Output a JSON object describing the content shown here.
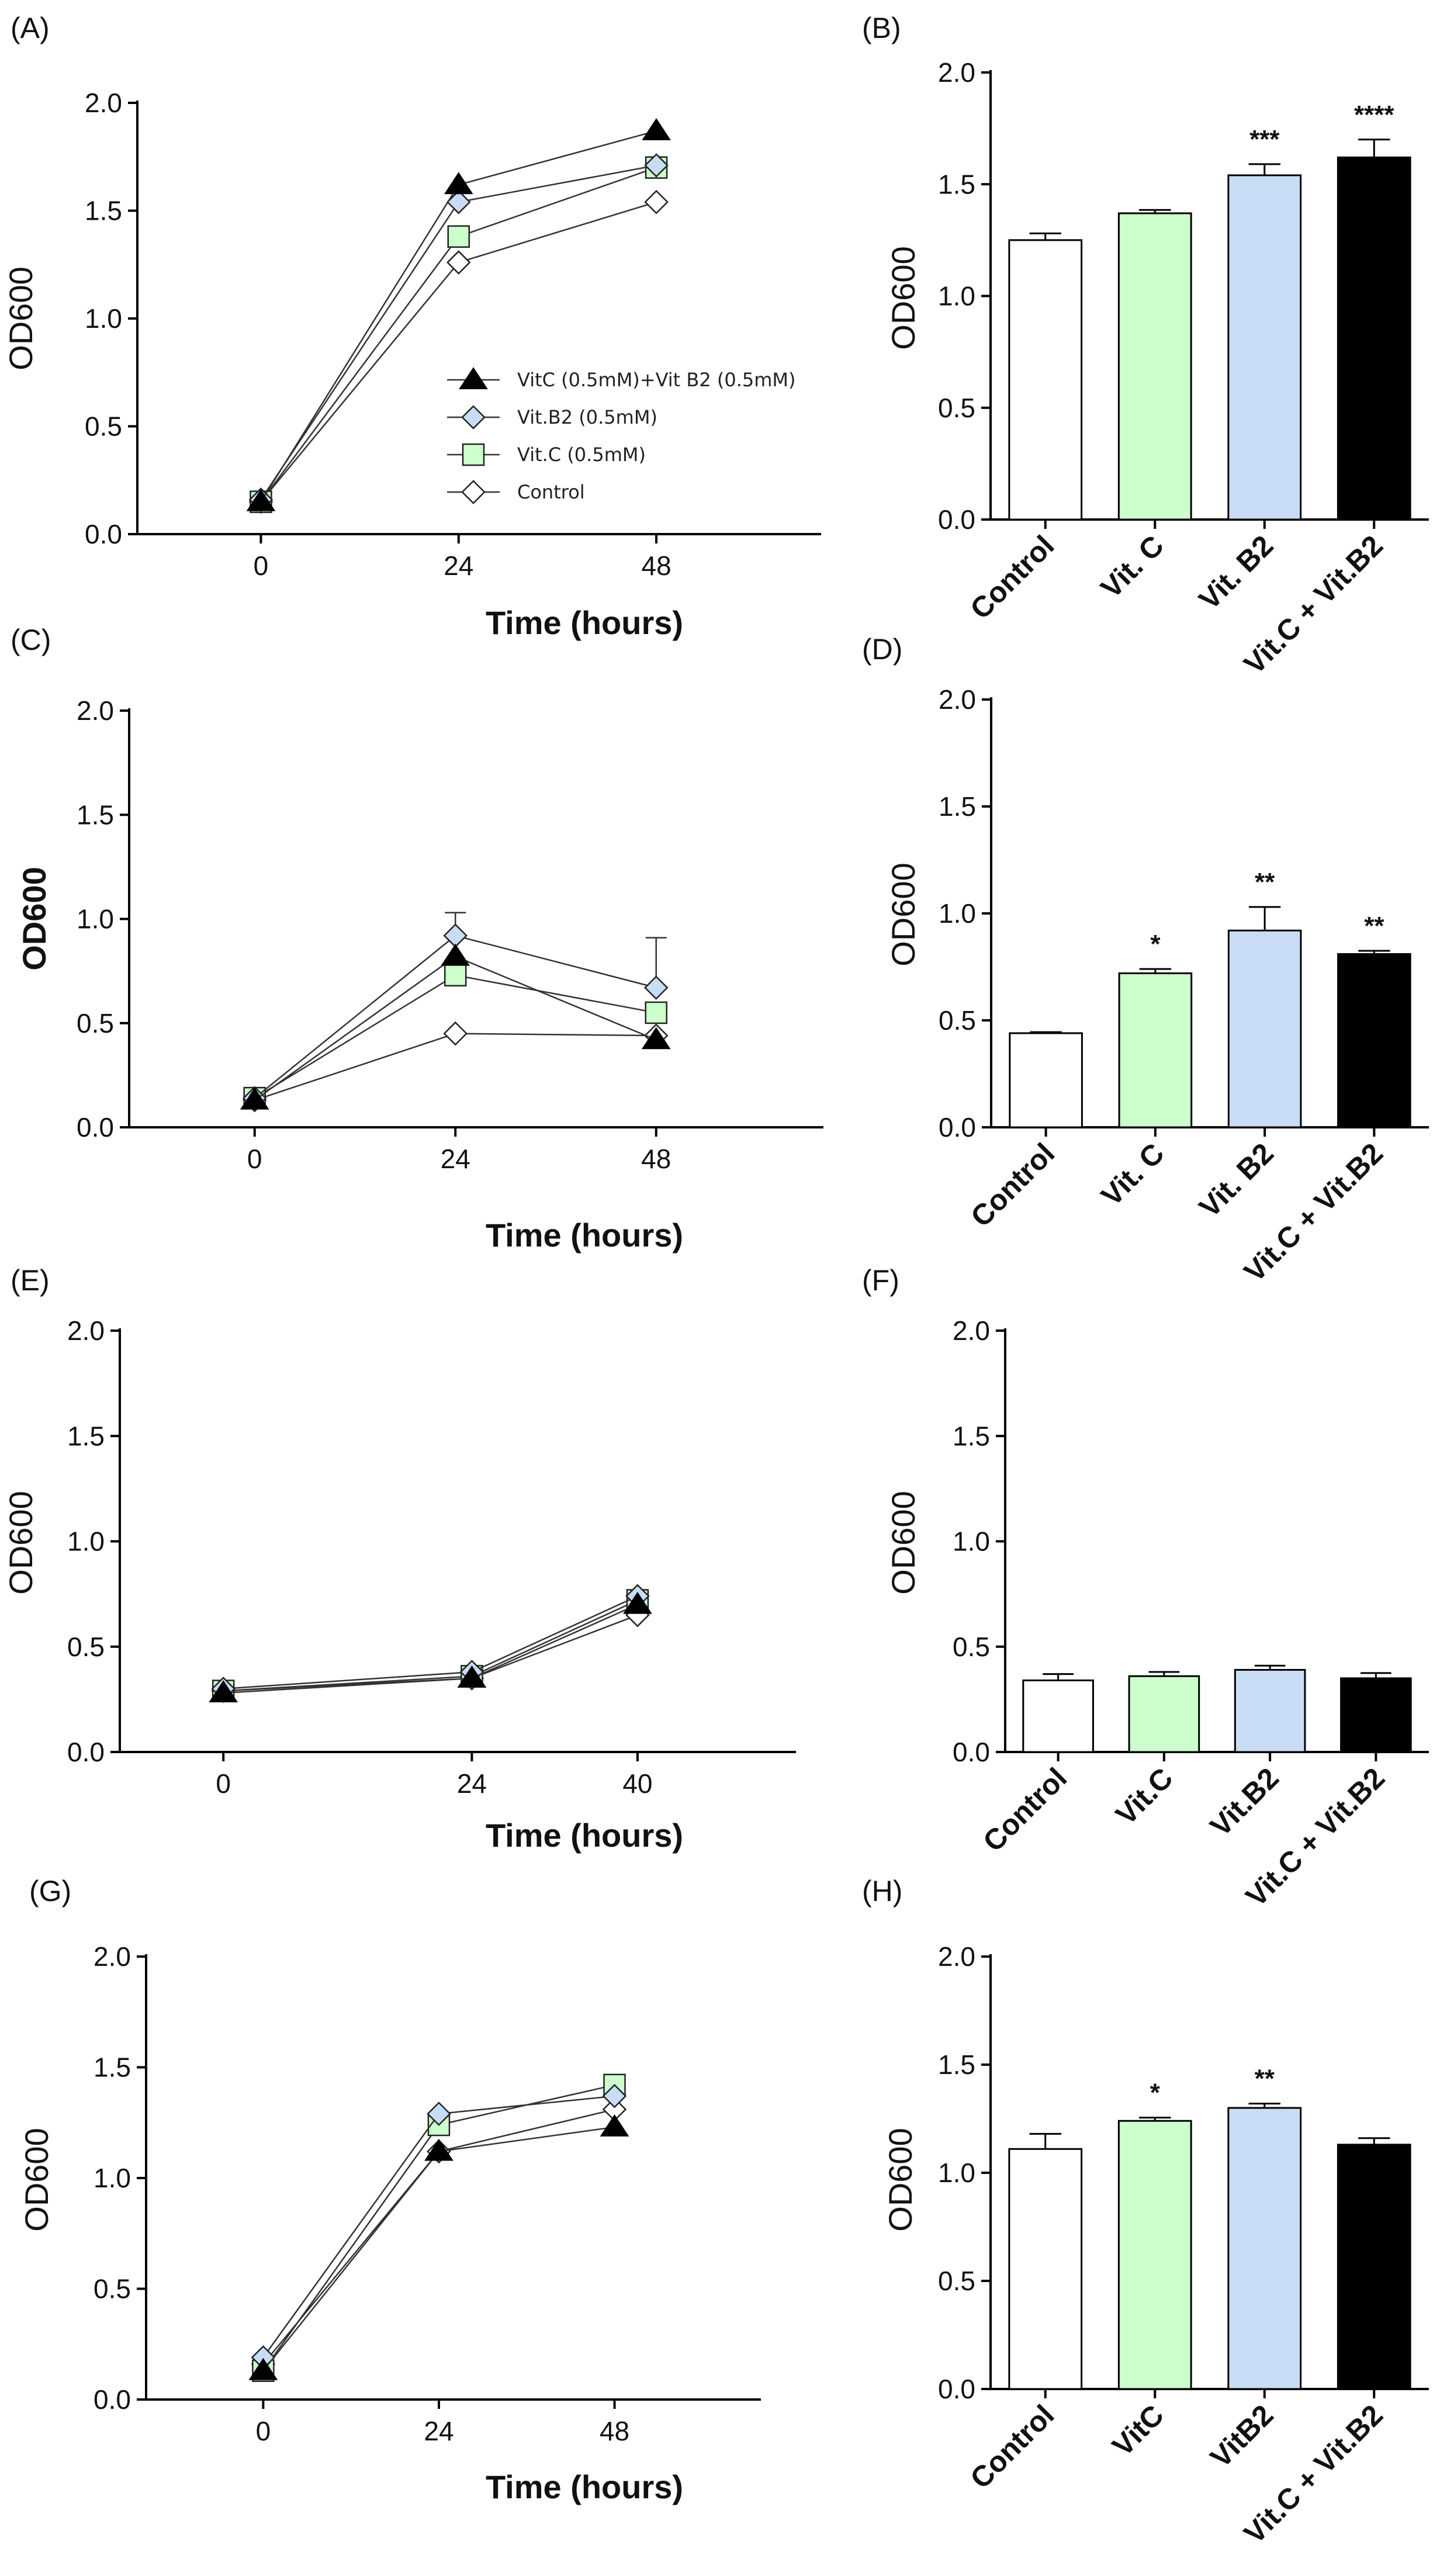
{
  "figure": {
    "background": "#ffffff"
  },
  "colors": {
    "control": "#ffffff",
    "vitc": "#ccffcc",
    "vitb2": "#c9dcf5",
    "combo": "#000000",
    "axis": "#000000"
  },
  "legend": [
    {
      "label": "VitC (0.5mM)+Vit B2 (0.5mM)",
      "marker": "triangle",
      "fill": "#000000"
    },
    {
      "label": "Vit.B2 (0.5mM)",
      "marker": "diamond",
      "fill": "#c9dcf5"
    },
    {
      "label": "Vit.C (0.5mM)",
      "marker": "square",
      "fill": "#ccffcc"
    },
    {
      "label": "Control",
      "marker": "diamond",
      "fill": "#ffffff"
    }
  ],
  "chart_data": [
    {
      "id": "A",
      "panel": "(A)",
      "type": "line",
      "xlabel": "Time (hours)",
      "ylabel": "OD600",
      "x": [
        0,
        24,
        48
      ],
      "xticks": [
        "0",
        "24",
        "48"
      ],
      "ylim": [
        0,
        2.0
      ],
      "yticks": [
        "0.0",
        "0.5",
        "1.0",
        "1.5",
        "2.0"
      ],
      "series": [
        {
          "name": "Control",
          "marker": "diamond",
          "fill": "#ffffff",
          "values": [
            0.15,
            1.26,
            1.54
          ]
        },
        {
          "name": "Vit.C (0.5mM)",
          "marker": "square",
          "fill": "#ccffcc",
          "values": [
            0.15,
            1.38,
            1.7
          ]
        },
        {
          "name": "Vit.B2 (0.5mM)",
          "marker": "diamond",
          "fill": "#c9dcf5",
          "values": [
            0.16,
            1.54,
            1.71
          ]
        },
        {
          "name": "VitC (0.5mM)+Vit B2 (0.5mM)",
          "marker": "triangle",
          "fill": "#000000",
          "values": [
            0.15,
            1.62,
            1.87
          ]
        }
      ]
    },
    {
      "id": "B",
      "panel": "(B)",
      "type": "bar",
      "ylabel": "OD600",
      "categories": [
        "Control",
        "Vit. C",
        "Vit. B2",
        "Vit.C + Vit.B2"
      ],
      "values": [
        1.25,
        1.37,
        1.54,
        1.62
      ],
      "errors": [
        0.03,
        0.015,
        0.05,
        0.08
      ],
      "significance": [
        "",
        "",
        "***",
        "****"
      ],
      "ylim": [
        0,
        2.0
      ],
      "yticks": [
        "0.0",
        "0.5",
        "1.0",
        "1.5",
        "2.0"
      ]
    },
    {
      "id": "C",
      "panel": "(C)",
      "type": "line",
      "xlabel": "Time (hours)",
      "ylabel": "OD600",
      "x": [
        0,
        24,
        48
      ],
      "xticks": [
        "0",
        "24",
        "48"
      ],
      "ylim": [
        0,
        2.0
      ],
      "yticks": [
        "0.0",
        "0.5",
        "1.0",
        "1.5",
        "2.0"
      ],
      "series": [
        {
          "name": "Control",
          "marker": "diamond",
          "fill": "#ffffff",
          "values": [
            0.13,
            0.45,
            0.44
          ]
        },
        {
          "name": "Vit.C (0.5mM)",
          "marker": "square",
          "fill": "#ccffcc",
          "values": [
            0.14,
            0.73,
            0.55
          ]
        },
        {
          "name": "Vit.B2 (0.5mM)",
          "marker": "diamond",
          "fill": "#c9dcf5",
          "values": [
            0.14,
            0.92,
            0.67
          ],
          "errors": [
            0,
            0.11,
            0.24
          ]
        },
        {
          "name": "VitC (0.5mM)+Vit B2 (0.5mM)",
          "marker": "triangle",
          "fill": "#000000",
          "values": [
            0.13,
            0.82,
            0.42
          ]
        }
      ]
    },
    {
      "id": "D",
      "panel": "(D)",
      "type": "bar",
      "ylabel": "OD600",
      "categories": [
        "Control",
        "Vit. C",
        "Vit. B2",
        "Vit.C + Vit.B2"
      ],
      "values": [
        0.44,
        0.72,
        0.92,
        0.81
      ],
      "errors": [
        0.005,
        0.02,
        0.11,
        0.015
      ],
      "significance": [
        "",
        "*",
        "**",
        "**"
      ],
      "ylim": [
        0,
        2.0
      ],
      "yticks": [
        "0.0",
        "0.5",
        "1.0",
        "1.5",
        "2.0"
      ]
    },
    {
      "id": "E",
      "panel": "(E)",
      "type": "line",
      "xlabel": "Time (hours)",
      "ylabel": "OD600",
      "x": [
        0,
        24,
        40
      ],
      "xticks": [
        "0",
        "24",
        "40"
      ],
      "ylim": [
        0,
        2.0
      ],
      "yticks": [
        "0.0",
        "0.5",
        "1.0",
        "1.5",
        "2.0"
      ],
      "series": [
        {
          "name": "Control",
          "marker": "diamond",
          "fill": "#ffffff",
          "values": [
            0.29,
            0.35,
            0.65
          ]
        },
        {
          "name": "Vit.C (0.5mM)",
          "marker": "square",
          "fill": "#ccffcc",
          "values": [
            0.29,
            0.36,
            0.72
          ]
        },
        {
          "name": "Vit.B2 (0.5mM)",
          "marker": "diamond",
          "fill": "#c9dcf5",
          "values": [
            0.3,
            0.38,
            0.74
          ]
        },
        {
          "name": "VitC (0.5mM)+Vit B2 (0.5mM)",
          "marker": "triangle",
          "fill": "#000000",
          "values": [
            0.28,
            0.35,
            0.7
          ]
        }
      ]
    },
    {
      "id": "F",
      "panel": "(F)",
      "type": "bar",
      "ylabel": "OD600",
      "categories": [
        "Control",
        "Vit.C",
        "Vit.B2",
        "Vit.C + Vit.B2"
      ],
      "values": [
        0.34,
        0.36,
        0.39,
        0.35
      ],
      "errors": [
        0.03,
        0.02,
        0.02,
        0.025
      ],
      "significance": [
        "",
        "",
        "",
        ""
      ],
      "ylim": [
        0,
        2.0
      ],
      "yticks": [
        "0.0",
        "0.5",
        "1.0",
        "1.5",
        "2.0"
      ]
    },
    {
      "id": "G",
      "panel": "(G)",
      "type": "line",
      "xlabel": "Time (hours)",
      "ylabel": "OD600",
      "x": [
        0,
        24,
        48
      ],
      "xticks": [
        "0",
        "24",
        "48"
      ],
      "ylim": [
        0,
        2.0
      ],
      "yticks": [
        "0.0",
        "0.5",
        "1.0",
        "1.5",
        "2.0"
      ],
      "series": [
        {
          "name": "Control",
          "marker": "diamond",
          "fill": "#ffffff",
          "values": [
            0.16,
            1.12,
            1.31
          ]
        },
        {
          "name": "Vit.C (0.5mM)",
          "marker": "square",
          "fill": "#ccffcc",
          "values": [
            0.13,
            1.24,
            1.42
          ]
        },
        {
          "name": "Vit.B2 (0.5mM)",
          "marker": "diamond",
          "fill": "#c9dcf5",
          "values": [
            0.19,
            1.29,
            1.37
          ]
        },
        {
          "name": "VitC (0.5mM)+Vit B2 (0.5mM)",
          "marker": "triangle",
          "fill": "#000000",
          "values": [
            0.13,
            1.12,
            1.23
          ]
        }
      ]
    },
    {
      "id": "H",
      "panel": "(H)",
      "type": "bar",
      "ylabel": "OD600",
      "categories": [
        "Control",
        "VitC",
        "VitB2",
        "Vit.C + Vit.B2"
      ],
      "values": [
        1.11,
        1.24,
        1.3,
        1.13
      ],
      "errors": [
        0.07,
        0.015,
        0.02,
        0.03
      ],
      "significance": [
        "",
        "*",
        "**",
        ""
      ],
      "ylim": [
        0,
        2.0
      ],
      "yticks": [
        "0.0",
        "0.5",
        "1.0",
        "1.5",
        "2.0"
      ]
    }
  ]
}
